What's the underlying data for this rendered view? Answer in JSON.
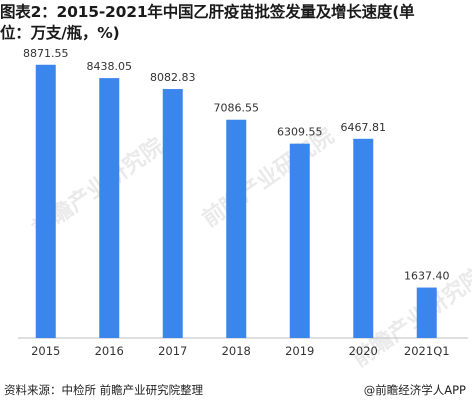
{
  "title_line1": "图表2：2015-2021年中国乙肝疫苗批签发量及增长速度(单",
  "title_line2": "位：万支/瓶，%)",
  "footer": {
    "source": "资料来源：中检所 前瞻产业研究院整理",
    "brand": "@前瞻经济学人APP"
  },
  "watermark": "前瞻产业研究院",
  "colors": {
    "bar": "#3a86ec",
    "axis": "#bfbfbf",
    "label": "#333333"
  },
  "chart_data": {
    "type": "bar",
    "categories": [
      "2015",
      "2016",
      "2017",
      "2018",
      "2019",
      "2020",
      "2021Q1"
    ],
    "values": [
      8871.55,
      8438.05,
      8082.83,
      7086.55,
      6309.55,
      6467.81,
      1637.4
    ],
    "value_labels": [
      "8871.55",
      "8438.05",
      "8082.83",
      "7086.55",
      "6309.55",
      "6467.81",
      "1637.40"
    ],
    "ylim": [
      0,
      10000
    ],
    "grid": false,
    "legend": "none",
    "xlabel": "",
    "ylabel": ""
  }
}
